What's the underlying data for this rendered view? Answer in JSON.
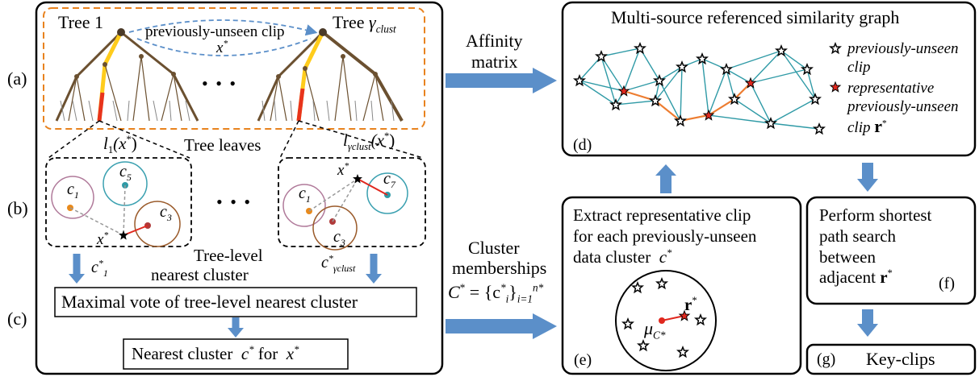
{
  "panel_a": {
    "marker": "(a)",
    "tree1_label": "Tree 1",
    "tree_last_label": "Tree",
    "tree_last_symbol": "γ",
    "tree_last_sub": "clust",
    "unseen_label": "previously-unseen clip",
    "x_star": "x",
    "star_sup": "*",
    "ellipsis": "• • •",
    "leaf_func_1": "l",
    "leaf_sub_1": "1",
    "leaf_arg": "(x",
    "leaf_close": ")",
    "leaf_func_g": "l",
    "leaf_sub_g": "γ",
    "leaf_sub_g2": "clust",
    "tree_leaves": "Tree leaves"
  },
  "panel_b": {
    "marker": "(b)",
    "c1": "c",
    "c1_sub": "1",
    "c3": "c",
    "c3_sub": "3",
    "c5": "c",
    "c5_sub": "5",
    "c7": "c",
    "c7_sub": "7",
    "x_star": "x",
    "star_sup": "*",
    "ellipsis": "• • •",
    "tree_level_1": "Tree-level",
    "tree_level_2": "nearest cluster",
    "c_left": "c",
    "c_left_sub": "1",
    "c_right": "c",
    "c_right_sub": "γ",
    "c_right_sub2": "clust"
  },
  "panel_c": {
    "marker": "(c)",
    "vote_text": "Maximal vote of tree-level nearest cluster",
    "nearest_text": "Nearest cluster",
    "nearest_c": "c",
    "nearest_for": "for",
    "nearest_x": "x",
    "star_sup": "*"
  },
  "arrows": {
    "affinity_1": "Affinity",
    "affinity_2": "matrix",
    "cluster_1": "Cluster",
    "cluster_2": "memberships",
    "cluster_formula": "C",
    "cluster_formula_rest": " = {c",
    "cluster_formula_sub": "i",
    "cluster_formula_close": "}",
    "cluster_formula_lower": "i=1",
    "cluster_formula_upper": "n",
    "star_sup": "*"
  },
  "panel_d": {
    "marker": "(d)",
    "title": "Multi-source referenced similarity graph",
    "legend_1a": "previously-unseen",
    "legend_1b": "clip",
    "legend_2a": "representative",
    "legend_2b": "previously-unseen",
    "legend_2c": "clip",
    "legend_r": "r",
    "star_sup": "*"
  },
  "panel_e": {
    "marker": "(e)",
    "line1": "Extract representative clip",
    "line2": "for each previously-unseen",
    "line3": "data cluster",
    "c": "c",
    "mu": "μ",
    "mu_sub": "C",
    "r": "r",
    "star_sup": "*"
  },
  "panel_f": {
    "marker": "(f)",
    "line1": "Perform shortest",
    "line2": "path search",
    "line3": "between",
    "line4": "adjacent",
    "r": "r",
    "star_sup": "*"
  },
  "panel_g": {
    "marker": "(g)",
    "label": "Key-clips"
  },
  "colors": {
    "orange_dash": "#e8821e",
    "blue_arrow": "#5b8fc9",
    "graph_edge": "#2f9aa6",
    "graph_path": "#ed7d31",
    "red_star": "#e0281e",
    "tree_brown": "#6b5030",
    "tree_red": "#e8341c",
    "tree_yellow": "#ffcc1c"
  }
}
